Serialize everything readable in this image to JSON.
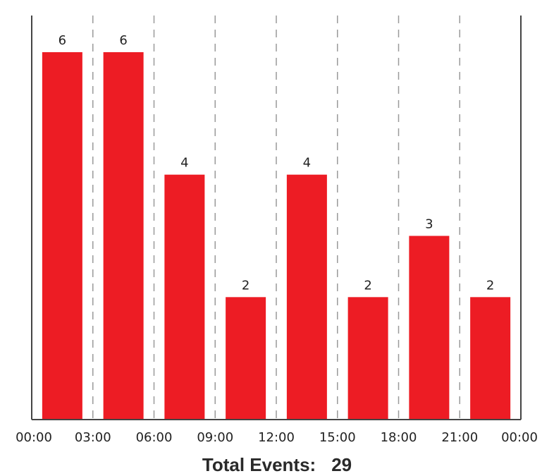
{
  "chart_data": {
    "type": "bar",
    "categories": [
      "00:00-03:00",
      "03:00-06:00",
      "06:00-09:00",
      "09:00-12:00",
      "12:00-15:00",
      "15:00-18:00",
      "18:00-21:00",
      "21:00-00:00"
    ],
    "values": [
      6,
      6,
      4,
      2,
      4,
      2,
      3,
      2
    ],
    "x_tick_labels": [
      "00:00",
      "03:00",
      "06:00",
      "09:00",
      "12:00",
      "15:00",
      "18:00",
      "21:00",
      "00:00"
    ],
    "ylim": [
      0,
      6
    ],
    "bar_color": "#ed1c24",
    "grid": "vertical dashed",
    "data_labels": true
  },
  "footer": {
    "label": "Total Events:",
    "value": "29"
  }
}
